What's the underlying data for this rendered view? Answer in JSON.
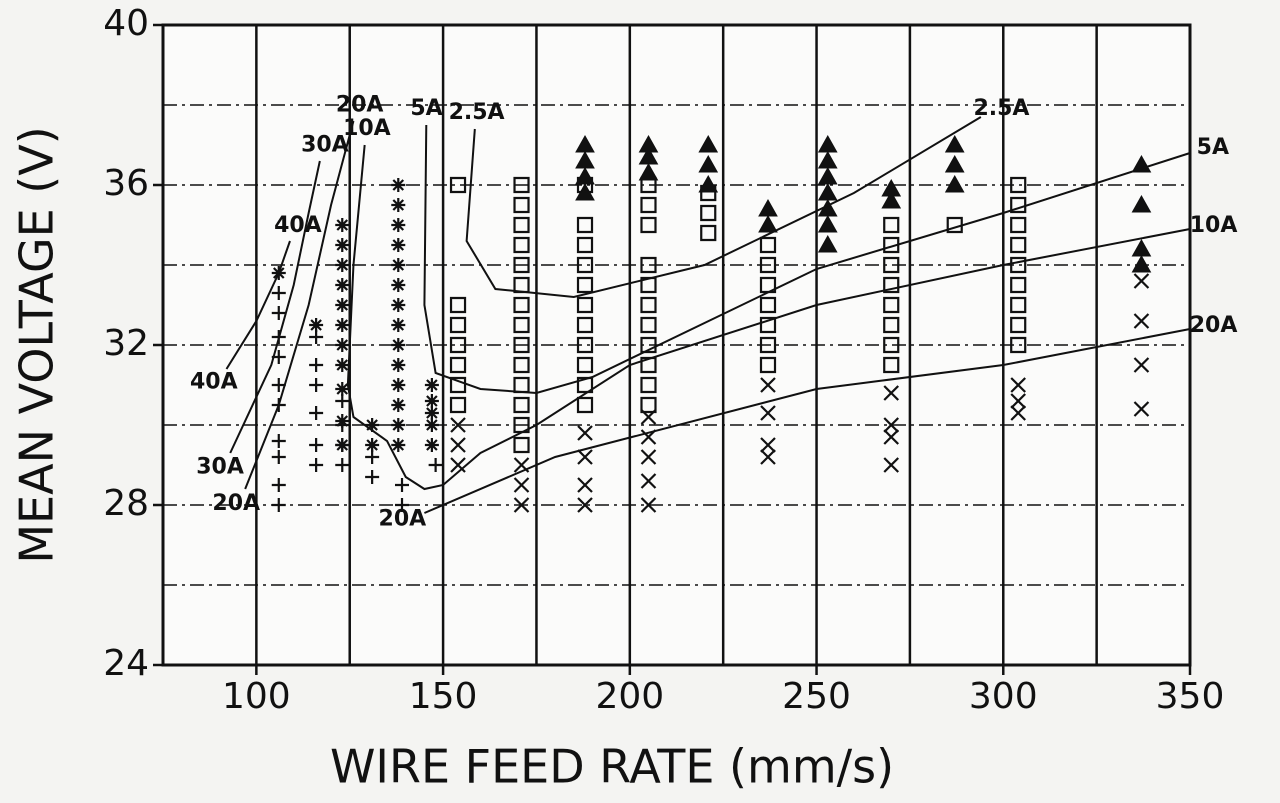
{
  "chart_data": {
    "type": "scatter",
    "xlabel": "WIRE FEED RATE (mm/s)",
    "ylabel": "MEAN VOLTAGE (V)",
    "xlim": [
      75,
      350
    ],
    "ylim": [
      24,
      40
    ],
    "xticks": [
      100,
      150,
      200,
      250,
      300,
      350
    ],
    "yticks": [
      24,
      28,
      32,
      36,
      40
    ],
    "x_grid": [
      100,
      125,
      150,
      175,
      200,
      225,
      250,
      275,
      300,
      325
    ],
    "y_grid": [
      26,
      28,
      30,
      32,
      34,
      36,
      38
    ],
    "color": "#111111",
    "series": [
      {
        "marker": "plus",
        "x": [
          106,
          106,
          106,
          106,
          106,
          106,
          106,
          106,
          106,
          106,
          116,
          116,
          116,
          116,
          116,
          116,
          123,
          123,
          123,
          123,
          131,
          131,
          139,
          139,
          148
        ],
        "y": [
          28,
          28.5,
          29.2,
          29.6,
          30.5,
          31,
          31.7,
          32.2,
          32.8,
          33.3,
          29,
          29.5,
          30.3,
          31,
          31.5,
          32.2,
          29,
          29.5,
          30,
          30.6,
          28.7,
          29.2,
          28,
          28.5,
          29
        ]
      },
      {
        "marker": "asterisk",
        "x": [
          106,
          116,
          123,
          123,
          123,
          123,
          123,
          123,
          123,
          123,
          123,
          123,
          123,
          131,
          131,
          138,
          138,
          138,
          138,
          138,
          138,
          138,
          138,
          138,
          138,
          138,
          138,
          138,
          138,
          147,
          147,
          147,
          147,
          147
        ],
        "y": [
          33.8,
          32.5,
          29.5,
          30.1,
          30.9,
          31.5,
          32,
          32.5,
          33,
          33.5,
          34,
          34.5,
          35,
          29.5,
          30,
          29.5,
          30,
          30.5,
          31,
          31.5,
          32,
          32.5,
          33,
          33.5,
          34,
          34.5,
          35,
          35.5,
          36,
          29.5,
          30,
          30.3,
          30.6,
          31
        ]
      },
      {
        "marker": "square",
        "x": [
          154,
          154,
          154,
          154,
          154,
          154,
          154,
          171,
          171,
          171,
          171,
          171,
          171,
          171,
          171,
          171,
          171,
          171,
          171,
          171,
          171,
          188,
          188,
          188,
          188,
          188,
          188,
          188,
          188,
          188,
          188,
          188,
          205,
          205,
          205,
          205,
          205,
          205,
          205,
          205,
          205,
          205,
          205,
          221,
          221,
          221,
          237,
          237,
          237,
          237,
          237,
          237,
          237,
          270,
          270,
          270,
          270,
          270,
          270,
          270,
          270,
          287,
          304,
          304,
          304,
          304,
          304,
          304,
          304,
          304,
          304
        ],
        "y": [
          30.5,
          31,
          31.5,
          32,
          32.5,
          33,
          36,
          29.5,
          30,
          30.5,
          31,
          31.5,
          32,
          32.5,
          33,
          33.5,
          34,
          34.5,
          35,
          35.5,
          36,
          30.5,
          31,
          31.5,
          32,
          32.5,
          33,
          33.5,
          34,
          34.5,
          35,
          36,
          30.5,
          31,
          31.5,
          32,
          32.5,
          33,
          33.5,
          34,
          35,
          35.5,
          36,
          34.8,
          35.3,
          35.8,
          31.5,
          32,
          32.5,
          33,
          33.5,
          34,
          34.5,
          31.5,
          32,
          32.5,
          33,
          33.5,
          34,
          34.5,
          35,
          35,
          32,
          32.5,
          33,
          33.5,
          34,
          34.5,
          35,
          35.5,
          36
        ]
      },
      {
        "marker": "triangle",
        "x": [
          188,
          188,
          188,
          188,
          205,
          205,
          205,
          221,
          221,
          221,
          237,
          237,
          253,
          253,
          253,
          253,
          253,
          253,
          253,
          270,
          270,
          287,
          287,
          287,
          337,
          337,
          337,
          337
        ],
        "y": [
          35.8,
          36.2,
          36.6,
          37,
          36.3,
          36.7,
          37,
          36,
          36.5,
          37,
          35,
          35.4,
          34.5,
          35,
          35.4,
          35.8,
          36.2,
          36.6,
          37,
          35.6,
          35.9,
          36,
          36.5,
          37,
          34,
          34.4,
          35.5,
          36.5
        ]
      },
      {
        "marker": "cross",
        "x": [
          154,
          154,
          154,
          171,
          171,
          171,
          188,
          188,
          188,
          188,
          205,
          205,
          205,
          205,
          205,
          237,
          237,
          237,
          237,
          270,
          270,
          270,
          270,
          304,
          304,
          304,
          337,
          337,
          337,
          337
        ],
        "y": [
          29,
          29.5,
          30,
          28,
          28.5,
          29,
          28,
          28.5,
          29.2,
          29.8,
          28,
          28.6,
          29.2,
          29.7,
          30.2,
          29.2,
          29.5,
          30.3,
          31,
          29,
          29.7,
          30,
          30.8,
          30.3,
          30.6,
          31,
          30.4,
          31.5,
          32.6,
          33.6
        ]
      }
    ],
    "curves": [
      {
        "start_label": "40A",
        "end_label": "40A",
        "x": [
          92,
          100,
          106,
          109
        ],
        "y": [
          31.4,
          32.6,
          33.8,
          34.6
        ]
      },
      {
        "start_label": "30A",
        "end_label": "30A",
        "x": [
          93,
          104,
          110,
          114,
          117
        ],
        "y": [
          29.3,
          31.5,
          33.5,
          35.3,
          36.6
        ]
      },
      {
        "start_label": "20A",
        "end_label": "20A",
        "x": [
          97,
          106,
          114,
          120,
          126
        ],
        "y": [
          28.4,
          30.5,
          33,
          35.5,
          37.6
        ]
      },
      {
        "start_label": "10A",
        "end_label": "10A",
        "x": [
          129,
          126,
          124.5,
          126,
          135,
          140,
          145,
          150,
          160,
          175,
          200,
          250,
          300,
          350
        ],
        "y": [
          37,
          34,
          31,
          30.2,
          29.6,
          28.7,
          28.4,
          28.5,
          29.3,
          30,
          31.5,
          33,
          34,
          34.9
        ]
      },
      {
        "start_label": "5A",
        "end_label": "5A",
        "x": [
          145.5,
          145,
          148,
          160,
          175,
          190,
          250,
          300,
          350
        ],
        "y": [
          37.5,
          33,
          31.3,
          30.9,
          30.8,
          31.2,
          33.9,
          35.3,
          36.8
        ]
      },
      {
        "start_label": "2.5A",
        "end_label": "2.5A",
        "x": [
          158.5,
          156.3,
          164,
          185,
          220,
          260,
          294
        ],
        "y": [
          37.4,
          34.6,
          33.4,
          33.2,
          34,
          35.8,
          37.7
        ]
      },
      {
        "start_label": "20A",
        "end_label": "20A",
        "x": [
          145,
          180,
          250,
          300,
          350
        ],
        "y": [
          27.8,
          29.2,
          30.9,
          31.5,
          32.4
        ]
      }
    ]
  }
}
